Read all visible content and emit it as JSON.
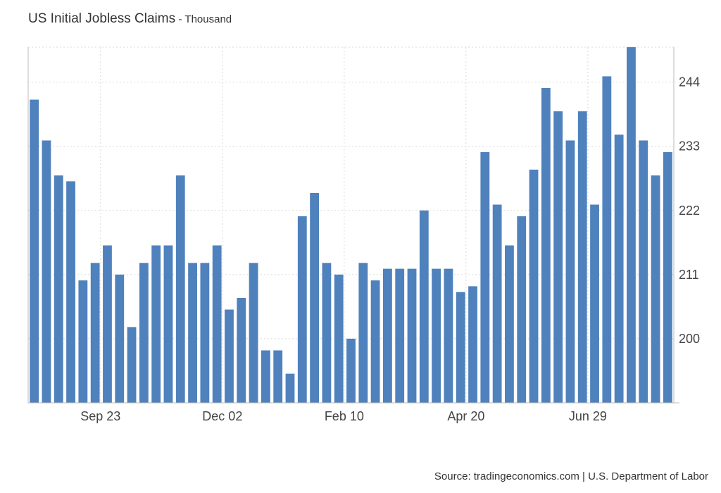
{
  "header": {
    "title": "US Initial Jobless Claims",
    "subtitle": "- Thousand"
  },
  "footer": {
    "source": "Source: tradingeconomics.com | U.S. Department of Labor"
  },
  "colors": {
    "bar": "#4f81bd",
    "grid": "#d9d9d9",
    "axis": "#bbbbbb"
  },
  "chart_data": {
    "type": "bar",
    "title": "US Initial Jobless Claims",
    "subtitle": "Thousand",
    "ylim": [
      189,
      250
    ],
    "yticks": [
      200,
      211,
      222,
      233,
      244
    ],
    "xtick_labels": [
      {
        "label": "Sep 23",
        "index": 5
      },
      {
        "label": "Dec 02",
        "index": 15
      },
      {
        "label": "Feb 10",
        "index": 25
      },
      {
        "label": "Apr 20",
        "index": 35
      },
      {
        "label": "Jun 29",
        "index": 45
      }
    ],
    "grid": true,
    "values": [
      241,
      234,
      228,
      227,
      210,
      213,
      216,
      211,
      202,
      213,
      216,
      216,
      228,
      213,
      213,
      216,
      205,
      207,
      213,
      198,
      198,
      194,
      221,
      225,
      213,
      211,
      200,
      213,
      210,
      212,
      212,
      212,
      222,
      212,
      212,
      208,
      209,
      232,
      223,
      216,
      221,
      229,
      243,
      239,
      234,
      239,
      223,
      245,
      235,
      250,
      234,
      228,
      232
    ]
  }
}
